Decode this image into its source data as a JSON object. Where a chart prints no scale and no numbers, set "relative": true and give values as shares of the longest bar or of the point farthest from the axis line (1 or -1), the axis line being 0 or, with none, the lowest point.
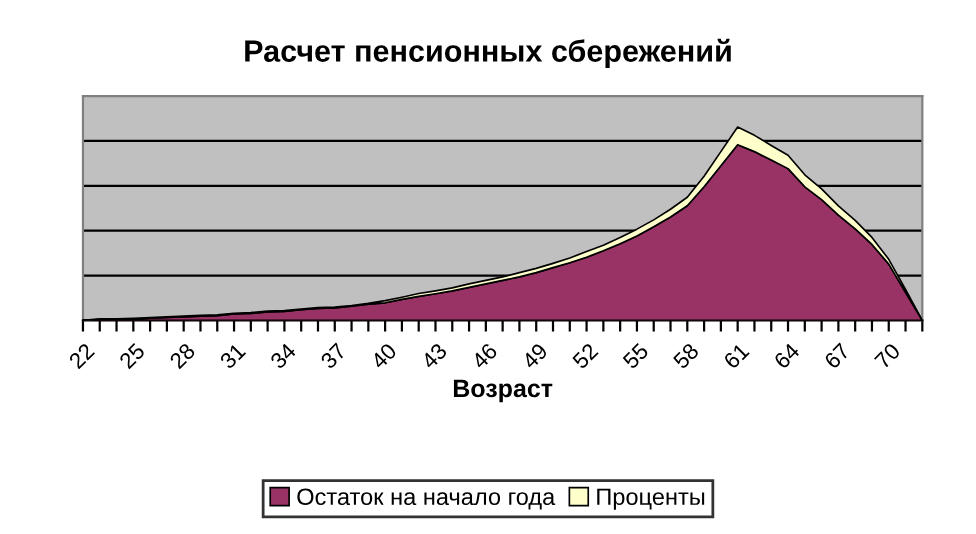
{
  "chart_data": {
    "type": "area",
    "title": "Расчет пенсионных сбережений",
    "xlabel": "Возраст",
    "relative": true,
    "stacked": true,
    "grid": "y",
    "legend": "bottom",
    "categories": [
      "22",
      null,
      null,
      "25",
      null,
      null,
      "28",
      null,
      null,
      "31",
      null,
      null,
      "34",
      null,
      null,
      "37",
      null,
      null,
      "40",
      null,
      null,
      "43",
      null,
      null,
      "46",
      null,
      null,
      "49",
      null,
      null,
      "52",
      null,
      null,
      "55",
      null,
      null,
      "58",
      null,
      null,
      "61",
      null,
      null,
      "64",
      null,
      null,
      "67",
      null,
      null,
      "70",
      null,
      null
    ],
    "series": [
      {
        "name": "Остаток на начало года",
        "color": "#993366",
        "values": [
          0,
          0.004,
          0.004,
          0.007,
          0.011,
          0.015,
          0.018,
          0.022,
          0.025,
          0.033,
          0.036,
          0.044,
          0.047,
          0.055,
          0.062,
          0.065,
          0.073,
          0.084,
          0.091,
          0.109,
          0.124,
          0.138,
          0.153,
          0.171,
          0.189,
          0.207,
          0.225,
          0.247,
          0.273,
          0.298,
          0.327,
          0.36,
          0.396,
          0.436,
          0.484,
          0.535,
          0.593,
          0.691,
          0.8,
          0.909,
          0.873,
          0.829,
          0.785,
          0.691,
          0.625,
          0.545,
          0.473,
          0.393,
          0.291,
          0.145,
          0
        ]
      },
      {
        "name": "Проценты",
        "color": "#ffffcc",
        "values": [
          0,
          0.004,
          0.004,
          0.004,
          0.004,
          0.004,
          0.004,
          0.004,
          0.004,
          0.004,
          0.004,
          0.004,
          0.004,
          0.004,
          0.004,
          0.004,
          0.004,
          0.004,
          0.011,
          0.011,
          0.015,
          0.015,
          0.015,
          0.018,
          0.018,
          0.018,
          0.022,
          0.022,
          0.022,
          0.025,
          0.029,
          0.029,
          0.033,
          0.036,
          0.036,
          0.04,
          0.044,
          0.055,
          0.073,
          0.091,
          0.084,
          0.076,
          0.069,
          0.062,
          0.055,
          0.047,
          0.044,
          0.036,
          0.025,
          0.015,
          0
        ]
      }
    ]
  }
}
